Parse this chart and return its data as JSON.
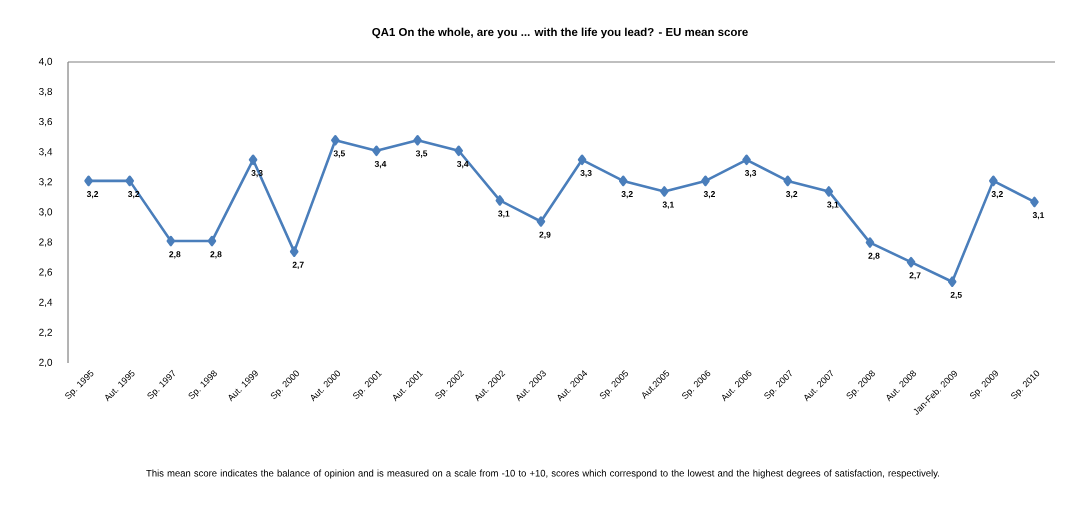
{
  "chart_data": {
    "type": "line",
    "title": "QA1 On the whole, are you ... with the life you lead?  -  EU mean score",
    "categories": [
      "Sp. 1995",
      "Aut. 1995",
      "Sp. 1997",
      "Sp. 1998",
      "Aut. 1999",
      "Sp. 2000",
      "Aut. 2000",
      "Sp. 2001",
      "Aut. 2001",
      "Sp. 2002",
      "Aut. 2002",
      "Aut. 2003",
      "Aut. 2004",
      "Sp. 2005",
      "Aut.2005",
      "Sp. 2006",
      "Aut. 2006",
      "Sp. 2007",
      "Aut. 2007",
      "Sp. 2008",
      "Aut. 2008",
      "Jan-Feb. 2009",
      "Sp. 2009",
      "Sp. 2010"
    ],
    "series": [
      {
        "color": "#4a7ebb",
        "values": [
          3.21,
          3.21,
          2.81,
          2.81,
          3.35,
          2.74,
          3.48,
          3.41,
          3.48,
          3.41,
          3.08,
          2.94,
          3.35,
          3.21,
          3.14,
          3.21,
          3.35,
          3.21,
          3.14,
          2.8,
          2.67,
          2.54,
          3.21,
          3.07
        ],
        "value_labels": [
          "3,2",
          "3,2",
          "2,8",
          "2,8",
          "3,3",
          "2,7",
          "3,5",
          "3,4",
          "3,5",
          "3,4",
          "3,1",
          "2,9",
          "3,3",
          "3,2",
          "3,1",
          "3,2",
          "3,3",
          "3,2",
          "3,1",
          "2,8",
          "2,7",
          "2,5",
          "3,2",
          "3,1"
        ]
      }
    ],
    "ylim": [
      2.0,
      4.0
    ],
    "yticks": [
      {
        "value": 2.0,
        "label": "2,0"
      },
      {
        "value": 2.2,
        "label": "2,2"
      },
      {
        "value": 2.4,
        "label": "2,4"
      },
      {
        "value": 2.6,
        "label": "2,6"
      },
      {
        "value": 2.8,
        "label": "2,8"
      },
      {
        "value": 3.0,
        "label": "3,0"
      },
      {
        "value": 3.2,
        "label": "3,2"
      },
      {
        "value": 3.4,
        "label": "3,4"
      },
      {
        "value": 3.6,
        "label": "3,6"
      },
      {
        "value": 3.8,
        "label": "3,8"
      },
      {
        "value": 4.0,
        "label": "4,0"
      }
    ],
    "marker": "diamond",
    "annotations": [
      "This mean score indicates the balance of opinion and is measured on a scale from -10 to +10, scores which correspond to the lowest and the highest degrees of satisfaction, respectively."
    ]
  }
}
